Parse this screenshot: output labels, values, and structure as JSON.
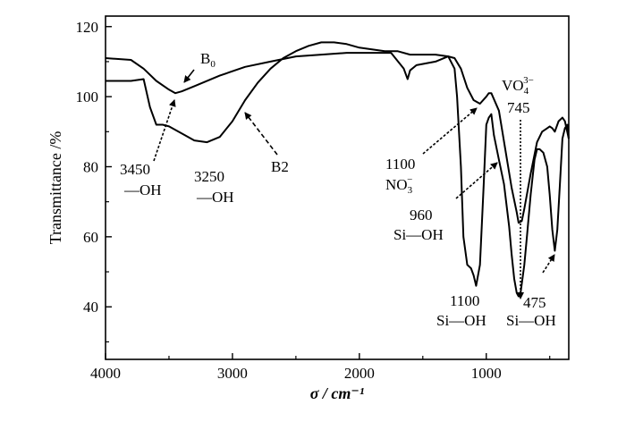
{
  "chart_data": {
    "type": "line",
    "xlabel": "σ / cm⁻¹",
    "ylabel": "Transmittance /%",
    "xlim": [
      4000,
      350
    ],
    "ylim": [
      25,
      123
    ],
    "x_reversed": true,
    "x_ticks": [
      4000,
      3000,
      2000,
      1000
    ],
    "x_tick_labels": [
      "4000",
      "3000",
      "2000",
      "1000"
    ],
    "y_ticks": [
      40,
      60,
      80,
      100,
      120
    ],
    "y_tick_labels": [
      "40",
      "60",
      "80",
      "100",
      "120"
    ],
    "grid": false,
    "series": [
      {
        "name": "B0",
        "color": "#000000",
        "x": [
          4000,
          3800,
          3700,
          3600,
          3500,
          3450,
          3400,
          3300,
          3100,
          2900,
          2700,
          2500,
          2300,
          2100,
          1900,
          1750,
          1650,
          1620,
          1600,
          1550,
          1400,
          1300,
          1250,
          1200,
          1150,
          1100,
          1050,
          1000,
          980,
          960,
          900,
          850,
          800,
          760,
          745,
          720,
          700,
          650,
          600,
          560,
          520,
          500,
          480,
          460,
          430,
          400,
          380,
          350
        ],
        "y": [
          111,
          110.5,
          108,
          104.5,
          102,
          101,
          101.5,
          103,
          106,
          108.5,
          110,
          111.5,
          112,
          112.5,
          112.5,
          112.5,
          108,
          105,
          107.5,
          109,
          110,
          111.5,
          111,
          108,
          102.5,
          99,
          98,
          100,
          101,
          101,
          96,
          85,
          74,
          67,
          64,
          64.5,
          68,
          78,
          87,
          90,
          91,
          91.5,
          91,
          90,
          93,
          94,
          93,
          88
        ]
      },
      {
        "name": "B2",
        "color": "#000000",
        "x": [
          4000,
          3800,
          3700,
          3650,
          3600,
          3550,
          3500,
          3400,
          3300,
          3200,
          3100,
          3000,
          2900,
          2800,
          2700,
          2600,
          2500,
          2400,
          2300,
          2200,
          2100,
          2000,
          1900,
          1800,
          1700,
          1600,
          1500,
          1400,
          1300,
          1250,
          1230,
          1200,
          1180,
          1150,
          1120,
          1100,
          1080,
          1050,
          1020,
          1000,
          980,
          960,
          940,
          900,
          860,
          820,
          800,
          780,
          760,
          745,
          730,
          700,
          680,
          650,
          620,
          600,
          580,
          550,
          520,
          500,
          480,
          460,
          440,
          420,
          400,
          380,
          360,
          350
        ],
        "y": [
          104.5,
          104.5,
          105,
          97,
          92,
          92,
          91.5,
          89.5,
          87.5,
          87,
          88.5,
          93,
          99,
          104,
          108,
          111,
          113,
          114.5,
          115.5,
          115.5,
          115,
          114,
          113.5,
          113,
          113,
          112,
          112,
          112,
          111.5,
          108,
          100,
          80,
          60,
          52,
          51,
          49,
          46,
          52,
          75,
          92,
          94,
          95,
          89,
          82,
          75,
          63,
          55,
          48,
          44,
          43,
          44,
          52,
          60,
          72,
          82,
          85,
          85,
          84,
          80,
          72,
          62,
          56,
          62,
          75,
          88,
          91,
          92,
          88
        ]
      }
    ],
    "annotations": [
      {
        "text": "B",
        "sub": "0"
      },
      {
        "text": "B2"
      },
      {
        "text": "3450"
      },
      {
        "text": "—OH"
      },
      {
        "text": "3250"
      },
      {
        "text": "—OH"
      },
      {
        "text": "1100"
      },
      {
        "text": "NO",
        "sub": "3",
        "sup": "−"
      },
      {
        "text": "960"
      },
      {
        "text": "Si—OH"
      },
      {
        "text": "VO",
        "sub": "4",
        "sup": "3−"
      },
      {
        "text": "745"
      },
      {
        "text": "1100"
      },
      {
        "text": "Si—OH"
      },
      {
        "text": "475"
      },
      {
        "text": "Si—OH"
      }
    ]
  }
}
